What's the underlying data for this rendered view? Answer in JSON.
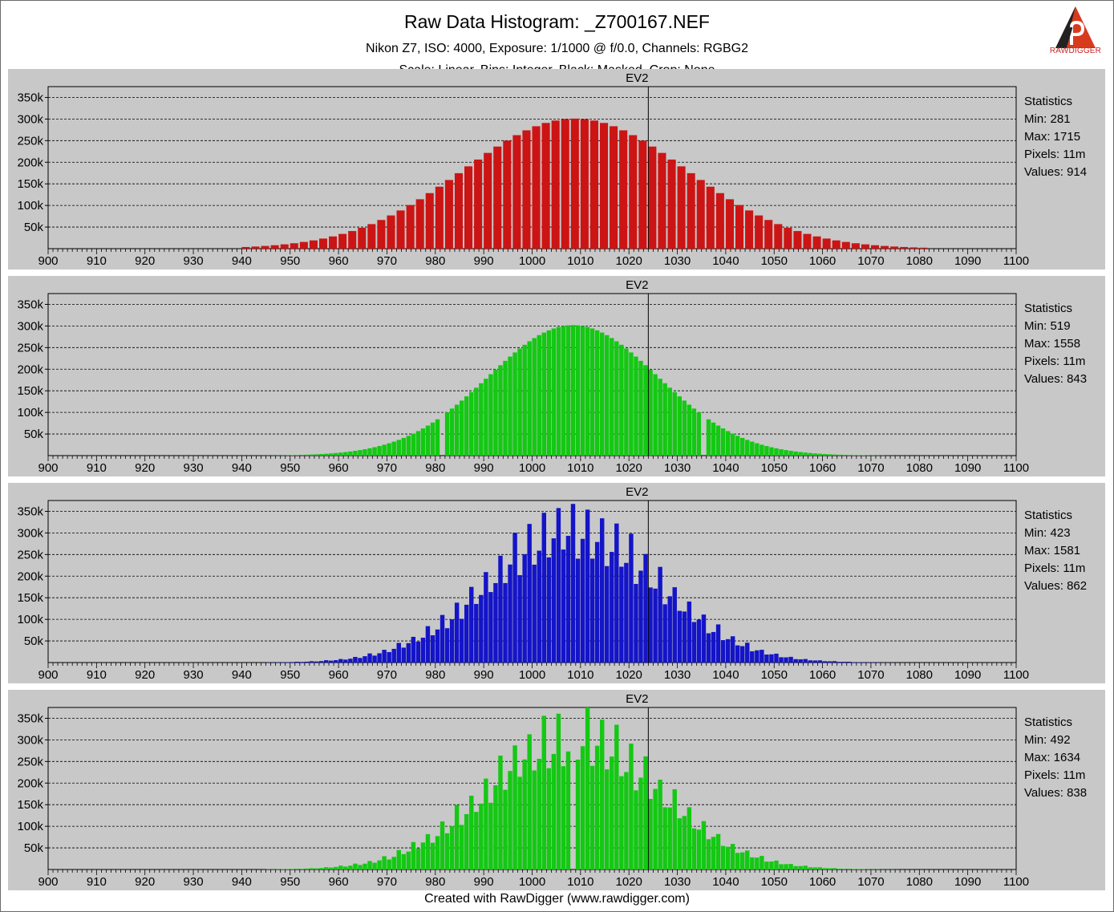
{
  "header": {
    "title": "Raw Data Histogram: _Z700167.NEF",
    "subtitle": "Nikon Z7, ISO: 4000, Exposure: 1/1000 @ f/0.0, Channels: RGBG2",
    "subtitle2": "Scale: Linear, Bins: Integer, Black: Masked, Crop: None",
    "logo_text": "RAWDIGGER"
  },
  "footer": {
    "text": "Created with RawDigger (www.rawdigger.com)"
  },
  "colors": {
    "red": "#cc1414",
    "green": "#14c814",
    "blue": "#1414c8",
    "panel": "#c8c8c8"
  },
  "chart_data": [
    {
      "type": "bar",
      "channel": "R",
      "marker_label": "EV2",
      "marker_x": 1024,
      "xlim": [
        900,
        1100
      ],
      "ylim": [
        0,
        375000
      ],
      "x_ticks": [
        "900",
        "910",
        "920",
        "930",
        "940",
        "950",
        "960",
        "970",
        "980",
        "990",
        "1000",
        "1010",
        "1020",
        "1030",
        "1040",
        "1050",
        "1060",
        "1070",
        "1080",
        "1090",
        "1100"
      ],
      "y_ticks": [
        "50k",
        "100k",
        "150k",
        "200k",
        "250k",
        "300k",
        "350k"
      ],
      "distribution": {
        "mean": 1008,
        "sd": 23,
        "peak": 301000,
        "pattern": "sparse",
        "even_gap": true
      },
      "stats": {
        "heading": "Statistics",
        "min": "Min: 281",
        "max": "Max: 1715",
        "pixels": "Pixels: 11m",
        "values": "Values: 914"
      }
    },
    {
      "type": "bar",
      "channel": "G",
      "marker_label": "EV2",
      "marker_x": 1024,
      "xlim": [
        900,
        1100
      ],
      "ylim": [
        0,
        375000
      ],
      "x_ticks": [
        "900",
        "910",
        "920",
        "930",
        "940",
        "950",
        "960",
        "970",
        "980",
        "990",
        "1000",
        "1010",
        "1020",
        "1030",
        "1040",
        "1050",
        "1060",
        "1070",
        "1080",
        "1090",
        "1100"
      ],
      "y_ticks": [
        "50k",
        "100k",
        "150k",
        "200k",
        "250k",
        "300k",
        "350k"
      ],
      "distribution": {
        "mean": 1008,
        "sd": 17.5,
        "peak": 302000,
        "pattern": "dense",
        "gaps": [
          981,
          1035
        ]
      },
      "stats": {
        "heading": "Statistics",
        "min": "Min: 519",
        "max": "Max: 1558",
        "pixels": "Pixels: 11m",
        "values": "Values: 843"
      }
    },
    {
      "type": "bar",
      "channel": "B",
      "marker_label": "EV2",
      "marker_x": 1024,
      "xlim": [
        900,
        1100
      ],
      "ylim": [
        0,
        375000
      ],
      "x_ticks": [
        "900",
        "910",
        "920",
        "930",
        "940",
        "950",
        "960",
        "970",
        "980",
        "990",
        "1000",
        "1010",
        "1020",
        "1030",
        "1040",
        "1050",
        "1060",
        "1070",
        "1080",
        "1090",
        "1100"
      ],
      "y_ticks": [
        "50k",
        "100k",
        "150k",
        "200k",
        "250k",
        "300k",
        "350k"
      ],
      "distribution": {
        "mean": 1008,
        "sd": 17.5,
        "peak": 300000,
        "pattern": "spiky"
      },
      "stats": {
        "heading": "Statistics",
        "min": "Min: 423",
        "max": "Max: 1581",
        "pixels": "Pixels: 11m",
        "values": "Values: 862"
      }
    },
    {
      "type": "bar",
      "channel": "G2",
      "marker_label": "EV2",
      "marker_x": 1024,
      "xlim": [
        900,
        1100
      ],
      "ylim": [
        0,
        375000
      ],
      "x_ticks": [
        "900",
        "910",
        "920",
        "930",
        "940",
        "950",
        "960",
        "970",
        "980",
        "990",
        "1000",
        "1010",
        "1020",
        "1030",
        "1040",
        "1050",
        "1060",
        "1070",
        "1080",
        "1090",
        "1100"
      ],
      "y_ticks": [
        "50k",
        "100k",
        "150k",
        "200k",
        "250k",
        "300k",
        "350k"
      ],
      "distribution": {
        "mean": 1008,
        "sd": 17.5,
        "peak": 300000,
        "pattern": "spiky",
        "gaps": [
          1008
        ]
      },
      "stats": {
        "heading": "Statistics",
        "min": "Min: 492",
        "max": "Max: 1634",
        "pixels": "Pixels: 11m",
        "values": "Values: 838"
      }
    }
  ]
}
